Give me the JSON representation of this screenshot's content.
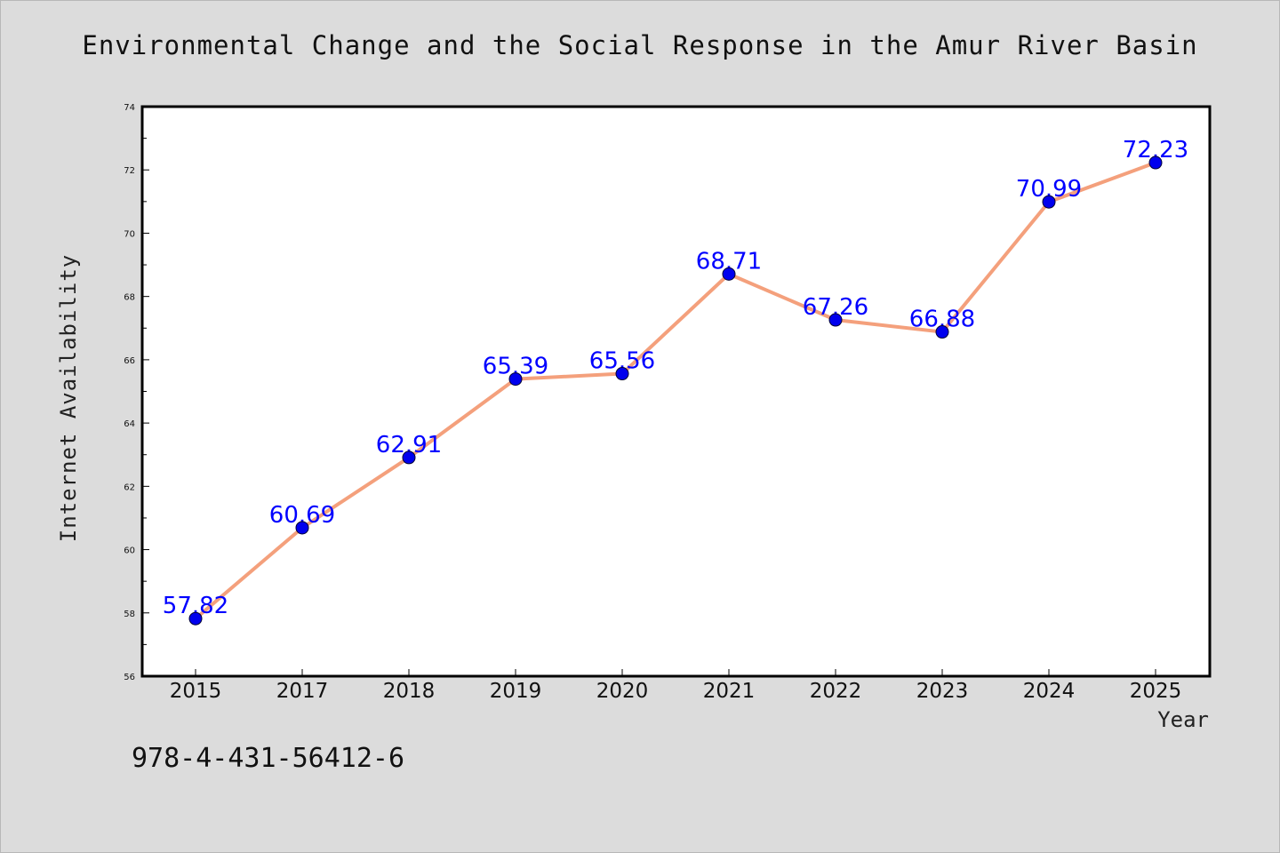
{
  "chart_data": {
    "type": "line",
    "title": "Environmental Change and the Social Response in the Amur River Basin",
    "xlabel": "Year",
    "ylabel": "Internet Availability",
    "categories": [
      "2015",
      "2017",
      "2018",
      "2019",
      "2020",
      "2021",
      "2022",
      "2023",
      "2024",
      "2025"
    ],
    "series": [
      {
        "values": [
          57.82,
          60.69,
          62.91,
          65.39,
          65.56,
          68.71,
          67.26,
          66.88,
          70.99,
          72.23
        ],
        "data_labels": [
          "57.82",
          "60.69",
          "62.91",
          "65.39",
          "65.56",
          "68.71",
          "67.26",
          "66.88",
          "70.99",
          "72.23"
        ],
        "line_color": "#f4a07c",
        "marker_color": "#0000ee"
      }
    ],
    "ylim": [
      56,
      74
    ],
    "yticks": [
      "56",
      "58",
      "60",
      "62",
      "64",
      "66",
      "68",
      "70",
      "72",
      "74"
    ],
    "grid": false,
    "legend": "none"
  },
  "footer": {
    "isbn": "978-4-431-56412-6"
  }
}
